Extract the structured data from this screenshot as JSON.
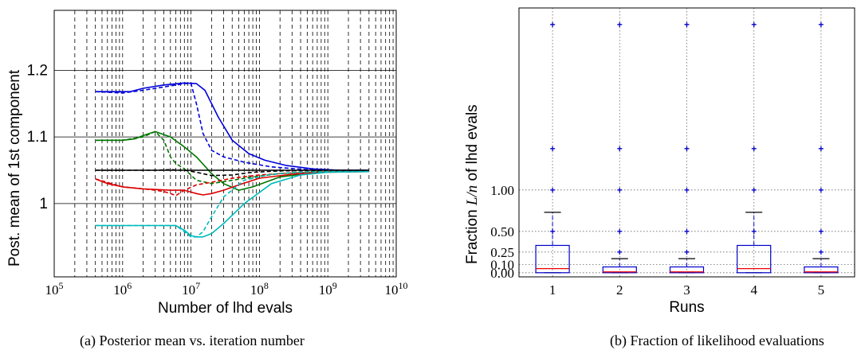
{
  "captions": {
    "a": "(a) Posterior mean vs. iteration number",
    "b": "(b) Fraction of likelihood evaluations"
  },
  "chart_data": [
    {
      "type": "line",
      "xlabel": "Number of lhd evals",
      "ylabel": "Post. mean of 1st component",
      "xscale": "log",
      "xlim": [
        100000,
        10000000000
      ],
      "ylim": [
        0.89,
        1.29
      ],
      "x_tick_labels": [
        "10^5",
        "10^6",
        "10^7",
        "10^8",
        "10^9",
        "10^10"
      ],
      "x_ticks": [
        100000,
        1000000,
        10000000,
        100000000,
        1000000000,
        10000000000
      ],
      "y_tick_labels": [
        "1",
        "1.1",
        "1.2"
      ],
      "y_ticks": [
        1.0,
        1.1,
        1.2
      ],
      "grid": "horizontal solid at y ticks, vertical dashed at log minor ticks",
      "colors": {
        "blue": "#0000dd",
        "green": "#007700",
        "black": "#000000",
        "red": "#dd0000",
        "cyan": "#00bbbb"
      },
      "series": [
        {
          "color": "blue",
          "style": "solid",
          "x": [
            400000,
            1000000,
            1300000,
            2000000,
            4000000,
            8000000,
            12000000,
            16000000,
            25000000,
            40000000,
            70000000,
            120000000,
            250000000,
            600000000,
            1500000000,
            4000000000
          ],
          "y": [
            1.168,
            1.168,
            1.168,
            1.173,
            1.178,
            1.181,
            1.18,
            1.17,
            1.13,
            1.095,
            1.075,
            1.065,
            1.057,
            1.052,
            1.05,
            1.05
          ]
        },
        {
          "color": "blue",
          "style": "dashed",
          "x": [
            400000,
            1000000,
            2000000,
            4000000,
            6000000,
            8000000,
            10000000,
            12000000,
            15000000,
            20000000,
            30000000,
            60000000,
            150000000,
            500000000,
            1500000000,
            4000000000
          ],
          "y": [
            1.168,
            1.166,
            1.17,
            1.175,
            1.178,
            1.18,
            1.18,
            1.15,
            1.105,
            1.08,
            1.07,
            1.062,
            1.055,
            1.051,
            1.05,
            1.05
          ]
        },
        {
          "color": "green",
          "style": "solid",
          "x": [
            400000,
            1000000,
            1500000,
            2000000,
            3000000,
            5000000,
            8000000,
            12000000,
            20000000,
            30000000,
            50000000,
            80000000,
            200000000,
            600000000,
            1500000000,
            4000000000
          ],
          "y": [
            1.095,
            1.095,
            1.097,
            1.102,
            1.108,
            1.1,
            1.085,
            1.07,
            1.045,
            1.03,
            1.02,
            1.025,
            1.04,
            1.046,
            1.048,
            1.048
          ]
        },
        {
          "color": "green",
          "style": "dashed",
          "x": [
            400000,
            1000000,
            2000000,
            3000000,
            4000000,
            5000000,
            6000000,
            8000000,
            12000000,
            20000000,
            40000000,
            80000000,
            200000000,
            600000000,
            1500000000,
            4000000000
          ],
          "y": [
            1.095,
            1.095,
            1.1,
            1.108,
            1.095,
            1.07,
            1.06,
            1.052,
            1.035,
            1.03,
            1.035,
            1.04,
            1.045,
            1.048,
            1.048,
            1.048
          ]
        },
        {
          "color": "black",
          "style": "solid",
          "x": [
            400000,
            1000000,
            3000000,
            10000000,
            30000000,
            100000000,
            300000000,
            1000000000,
            4000000000
          ],
          "y": [
            1.05,
            1.05,
            1.05,
            1.05,
            1.05,
            1.05,
            1.05,
            1.05,
            1.05
          ]
        },
        {
          "color": "black",
          "style": "dashed",
          "x": [
            400000,
            1000000,
            3000000,
            5000000,
            8000000,
            12000000,
            20000000,
            40000000,
            80000000,
            200000000,
            1000000000,
            4000000000
          ],
          "y": [
            1.05,
            1.05,
            1.05,
            1.051,
            1.05,
            1.047,
            1.042,
            1.043,
            1.047,
            1.049,
            1.05,
            1.05
          ]
        },
        {
          "color": "red",
          "style": "solid",
          "x": [
            400000,
            600000,
            1000000,
            2000000,
            5000000,
            8000000,
            12000000,
            15000000,
            20000000,
            30000000,
            50000000,
            100000000,
            300000000,
            1000000000,
            4000000000
          ],
          "y": [
            1.037,
            1.03,
            1.025,
            1.022,
            1.02,
            1.02,
            1.015,
            1.013,
            1.015,
            1.02,
            1.028,
            1.038,
            1.044,
            1.047,
            1.048
          ]
        },
        {
          "color": "red",
          "style": "dashed",
          "x": [
            400000,
            1000000,
            2000000,
            3000000,
            4000000,
            5000000,
            6000000,
            8000000,
            12000000,
            20000000,
            40000000,
            100000000,
            300000000,
            1000000000,
            4000000000
          ],
          "y": [
            1.037,
            1.025,
            1.022,
            1.02,
            1.018,
            1.015,
            1.012,
            1.02,
            1.028,
            1.032,
            1.038,
            1.043,
            1.046,
            1.048,
            1.048
          ]
        },
        {
          "color": "cyan",
          "style": "solid",
          "x": [
            400000,
            1000000,
            3000000,
            6000000,
            8000000,
            10000000,
            12000000,
            15000000,
            20000000,
            30000000,
            60000000,
            150000000,
            400000000,
            1000000000,
            4000000000
          ],
          "y": [
            0.967,
            0.967,
            0.967,
            0.967,
            0.96,
            0.952,
            0.95,
            0.95,
            0.955,
            0.97,
            1.0,
            1.03,
            1.043,
            1.047,
            1.048
          ]
        },
        {
          "color": "cyan",
          "style": "dashed",
          "x": [
            400000,
            1000000,
            3000000,
            6000000,
            8000000,
            10000000,
            12000000,
            15000000,
            20000000,
            30000000,
            60000000,
            150000000,
            400000000,
            1000000000,
            4000000000
          ],
          "y": [
            0.967,
            0.967,
            0.967,
            0.967,
            0.958,
            0.95,
            0.95,
            0.958,
            0.98,
            1.01,
            1.035,
            1.044,
            1.047,
            1.048,
            1.048
          ]
        }
      ]
    },
    {
      "type": "box",
      "xlabel": "Runs",
      "ylabel": "Fraction L/n of lhd evals",
      "categories": [
        "1",
        "2",
        "3",
        "4",
        "5"
      ],
      "y_tick_labels": [
        "0.00",
        "0.10",
        "0.25",
        "0.50",
        "1.00"
      ],
      "y_ticks": [
        0.0,
        0.1,
        0.25,
        0.5,
        1.0
      ],
      "ylim": [
        -0.05,
        3.2
      ],
      "grid": "dotted",
      "colors": {
        "box": "#0000cc",
        "median": "#ee0000",
        "whisker_cap": "#000000",
        "outlier": "#0000cc"
      },
      "boxes": [
        {
          "run": "1",
          "q1": 0.0,
          "median": 0.05,
          "q3": 0.33,
          "whisker_high": 0.73
        },
        {
          "run": "2",
          "q1": 0.0,
          "median": 0.01,
          "q3": 0.07,
          "whisker_high": 0.17
        },
        {
          "run": "3",
          "q1": 0.0,
          "median": 0.01,
          "q3": 0.07,
          "whisker_high": 0.17
        },
        {
          "run": "4",
          "q1": 0.0,
          "median": 0.05,
          "q3": 0.33,
          "whisker_high": 0.73
        },
        {
          "run": "5",
          "q1": 0.0,
          "median": 0.01,
          "q3": 0.07,
          "whisker_high": 0.17
        }
      ],
      "outliers": [
        {
          "run": "1",
          "values": [
            0.5,
            1.0,
            1.5,
            3.0
          ]
        },
        {
          "run": "2",
          "values": [
            0.25,
            0.5,
            1.0,
            1.5,
            3.0
          ]
        },
        {
          "run": "3",
          "values": [
            0.25,
            0.5,
            1.0,
            1.5,
            3.0
          ]
        },
        {
          "run": "4",
          "values": [
            0.5,
            1.0,
            1.5,
            3.0
          ]
        },
        {
          "run": "5",
          "values": [
            0.25,
            0.5,
            1.0,
            1.5,
            3.0
          ]
        }
      ]
    }
  ]
}
